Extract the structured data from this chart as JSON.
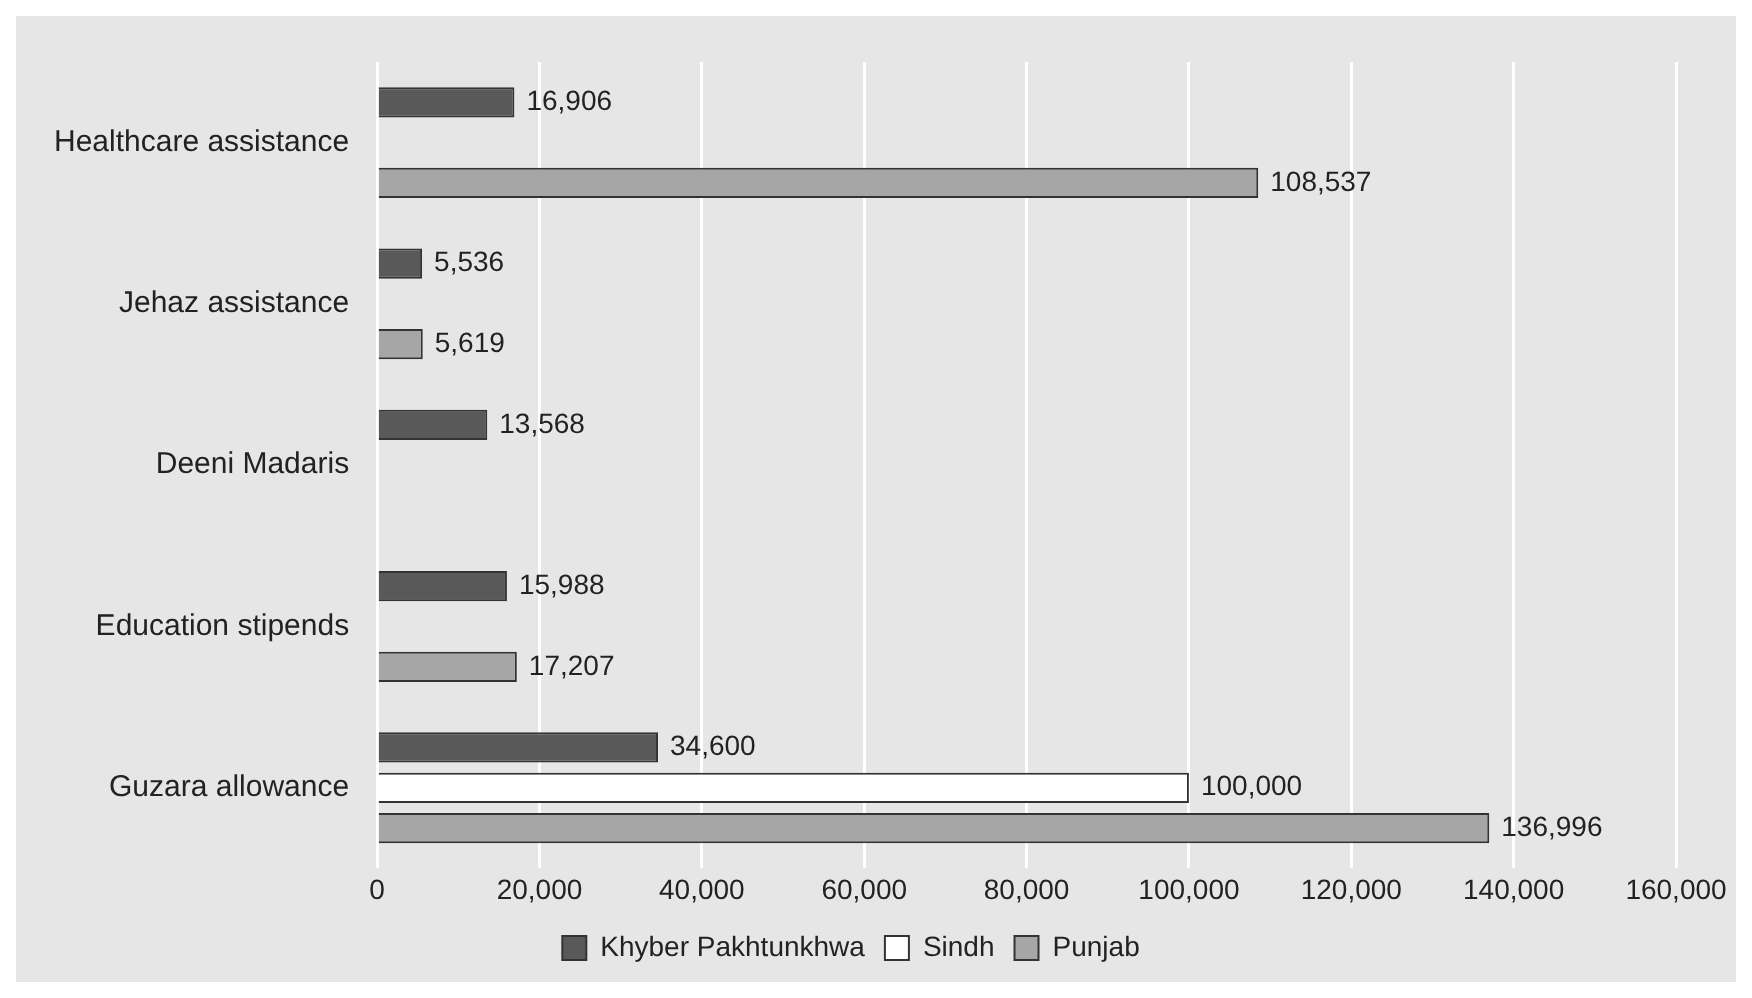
{
  "chart_data": {
    "type": "bar",
    "orientation": "horizontal",
    "categories": [
      "Healthcare assistance",
      "Jehaz assistance",
      "Deeni Madaris",
      "Education stipends",
      "Guzara allowance"
    ],
    "series": [
      {
        "name": "Khyber Pakhtunkhwa",
        "color": "#595959",
        "values": [
          16906,
          5536,
          13568,
          15988,
          34600
        ],
        "value_labels": [
          "16,906",
          "5,536",
          "13,568",
          "15,988",
          "34,600"
        ]
      },
      {
        "name": "Sindh",
        "color": "#ffffff",
        "values": [
          null,
          null,
          null,
          null,
          100000
        ],
        "value_labels": [
          null,
          null,
          null,
          null,
          "100,000"
        ]
      },
      {
        "name": "Punjab",
        "color": "#a6a6a6",
        "values": [
          108537,
          5619,
          null,
          17207,
          136996
        ],
        "value_labels": [
          "108,537",
          "5,619",
          null,
          "17,207",
          "136,996"
        ]
      }
    ],
    "xlim": [
      0,
      160000
    ],
    "xticks": [
      {
        "value": 0,
        "label": "0"
      },
      {
        "value": 20000,
        "label": "20,000"
      },
      {
        "value": 40000,
        "label": "40,000"
      },
      {
        "value": 60000,
        "label": "60,000"
      },
      {
        "value": 80000,
        "label": "80,000"
      },
      {
        "value": 100000,
        "label": "100,000"
      },
      {
        "value": 120000,
        "label": "120,000"
      },
      {
        "value": 140000,
        "label": "140,000"
      },
      {
        "value": 160000,
        "label": "160,000"
      }
    ],
    "grid": "x",
    "legend": "bottom"
  }
}
